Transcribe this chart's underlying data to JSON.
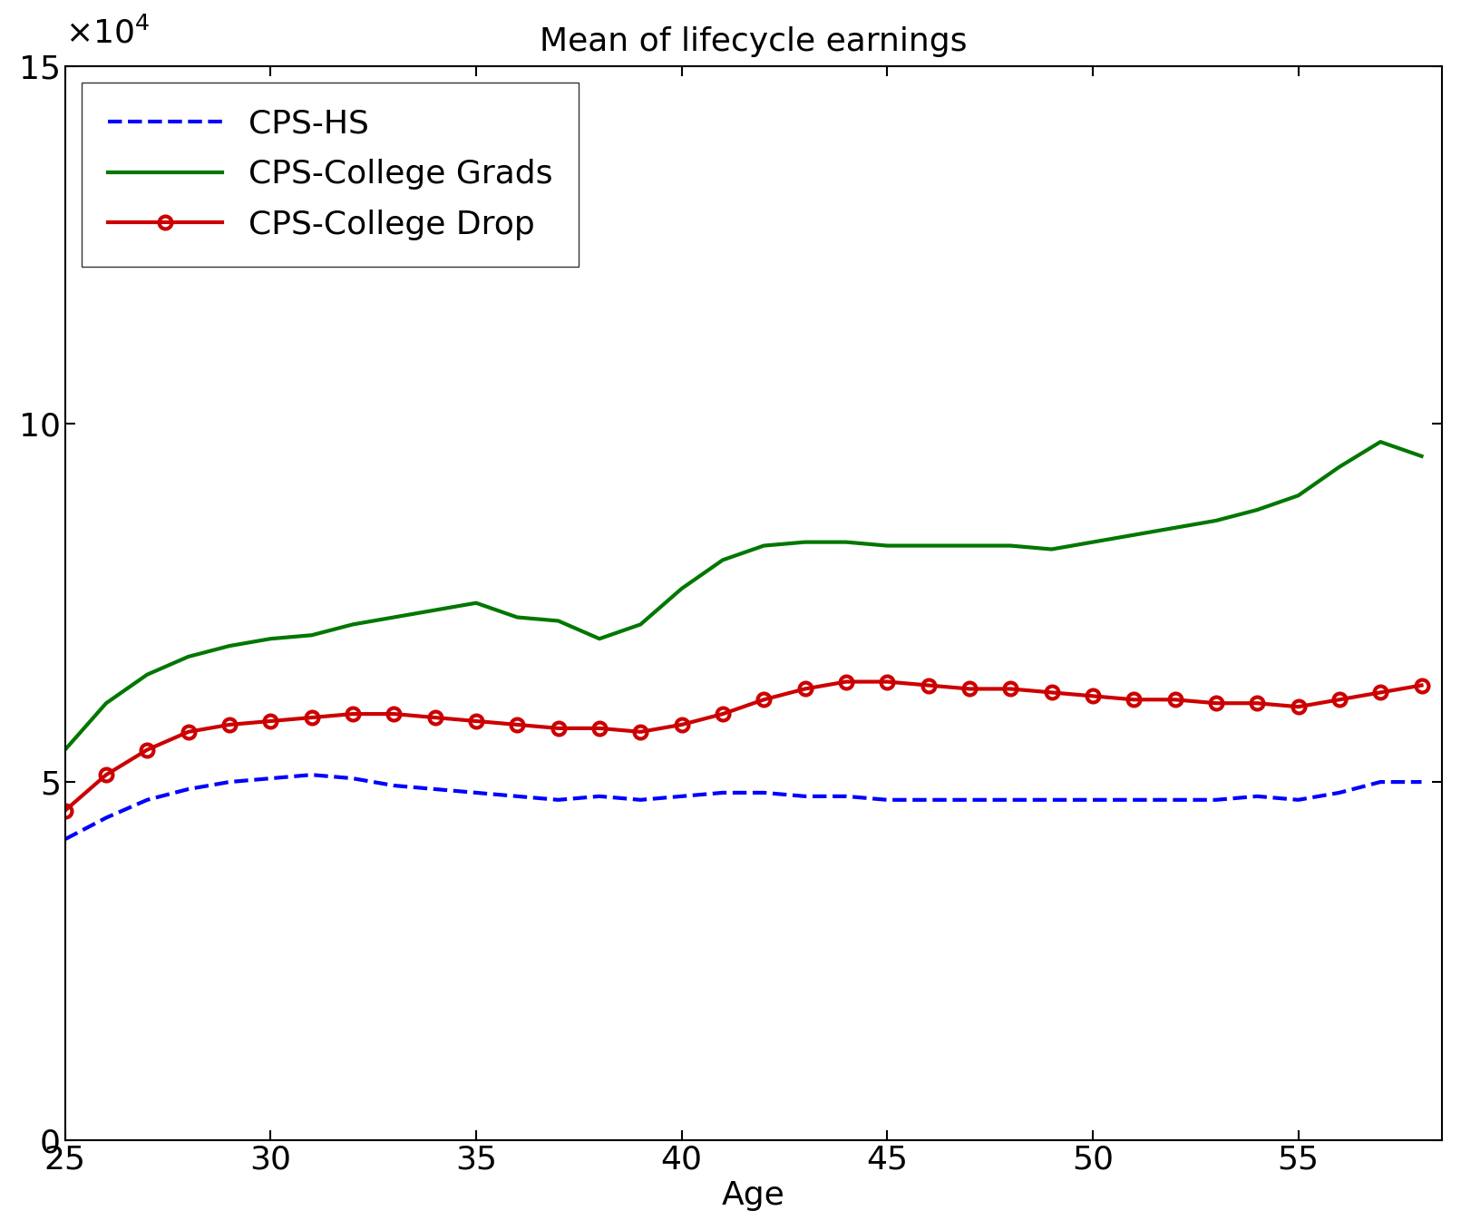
{
  "title": "Mean of lifecycle earnings",
  "xlabel": "Age",
  "xlim": [
    25,
    58.5
  ],
  "ylim": [
    0,
    150000
  ],
  "ages": [
    25,
    26,
    27,
    28,
    29,
    30,
    31,
    32,
    33,
    34,
    35,
    36,
    37,
    38,
    39,
    40,
    41,
    42,
    43,
    44,
    45,
    46,
    47,
    48,
    49,
    50,
    51,
    52,
    53,
    54,
    55,
    56,
    57,
    58
  ],
  "cps_hs": [
    42000,
    45000,
    47500,
    49000,
    50000,
    50500,
    51000,
    50500,
    49500,
    49000,
    48500,
    48000,
    47500,
    48000,
    47500,
    48000,
    48500,
    48500,
    48000,
    48000,
    47500,
    47500,
    47500,
    47500,
    47500,
    47500,
    47500,
    47500,
    47500,
    48000,
    47500,
    48500,
    50000,
    50000
  ],
  "cps_college_grads": [
    54500,
    61000,
    65000,
    67500,
    69000,
    70000,
    70500,
    72000,
    73000,
    74000,
    75000,
    73000,
    72500,
    70000,
    72000,
    77000,
    81000,
    83000,
    83500,
    83500,
    83000,
    83000,
    83000,
    83000,
    82500,
    83500,
    84500,
    85500,
    86500,
    88000,
    90000,
    94000,
    97500,
    95500
  ],
  "cps_college_drop": [
    46000,
    51000,
    54500,
    57000,
    58000,
    58500,
    59000,
    59500,
    59500,
    59000,
    58500,
    58000,
    57500,
    57500,
    57000,
    58000,
    59500,
    61500,
    63000,
    64000,
    64000,
    63500,
    63000,
    63000,
    62500,
    62000,
    61500,
    61500,
    61000,
    61000,
    60500,
    61500,
    62500,
    63500
  ],
  "hs_color": "#0000ff",
  "grads_color": "#007700",
  "drop_color": "#cc0000",
  "hs_label": "CPS-HS",
  "grads_label": "CPS-College Grads",
  "drop_label": "CPS-College Drop",
  "title_fontsize": 26,
  "label_fontsize": 26,
  "tick_fontsize": 26,
  "legend_fontsize": 26,
  "linewidth": 3.0,
  "marker_size": 10,
  "figsize": [
    16.11,
    13.56
  ],
  "dpi": 100
}
